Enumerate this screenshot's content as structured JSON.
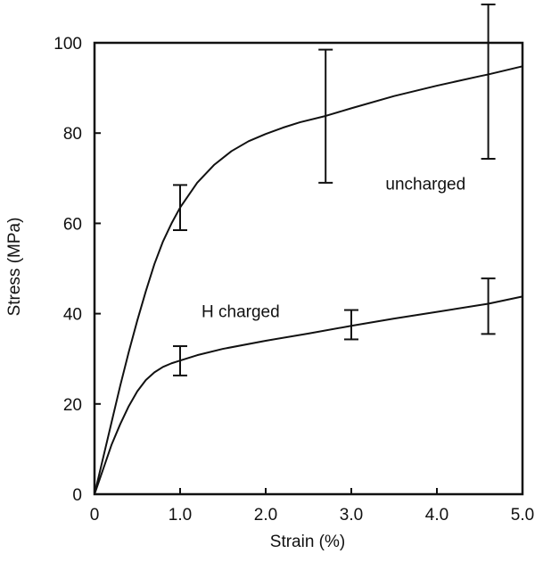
{
  "chart_data": {
    "type": "line",
    "title": "",
    "xlabel": "Strain (%)",
    "ylabel": "Stress (MPa)",
    "xlim": [
      0,
      5
    ],
    "ylim": [
      0,
      100
    ],
    "xticks": [
      0,
      1,
      2,
      3,
      4,
      5
    ],
    "xtick_labels": [
      "0",
      "1.0",
      "2.0",
      "3.0",
      "4.0",
      "5.0"
    ],
    "yticks": [
      0,
      20,
      40,
      60,
      80,
      100
    ],
    "ytick_labels": [
      "0",
      "20",
      "40",
      "60",
      "80",
      "100"
    ],
    "grid": false,
    "legend": "none",
    "series": [
      {
        "name": "uncharged",
        "label_position": [
          3.4,
          67.5
        ],
        "points": [
          [
            0,
            0
          ],
          [
            0.1,
            8
          ],
          [
            0.2,
            16
          ],
          [
            0.3,
            24
          ],
          [
            0.4,
            31.5
          ],
          [
            0.5,
            38.5
          ],
          [
            0.6,
            45
          ],
          [
            0.7,
            51
          ],
          [
            0.8,
            56
          ],
          [
            0.9,
            60
          ],
          [
            1.0,
            63.5
          ],
          [
            1.2,
            69
          ],
          [
            1.4,
            73
          ],
          [
            1.6,
            76
          ],
          [
            1.8,
            78.2
          ],
          [
            2.0,
            79.8
          ],
          [
            2.2,
            81.2
          ],
          [
            2.4,
            82.4
          ],
          [
            2.7,
            83.8
          ],
          [
            3.0,
            85.5
          ],
          [
            3.5,
            88.2
          ],
          [
            4.0,
            90.5
          ],
          [
            4.5,
            92.6
          ],
          [
            4.6,
            93
          ],
          [
            5.0,
            94.8
          ]
        ],
        "error_bars": [
          {
            "x": 1.0,
            "y": 63.5,
            "low": 58.5,
            "high": 68.5
          },
          {
            "x": 2.7,
            "y": 83.8,
            "low": 69,
            "high": 98.5
          },
          {
            "x": 4.6,
            "y": 93,
            "low": 74.3,
            "high": 108.5
          }
        ]
      },
      {
        "name": "H  charged",
        "label_position": [
          1.25,
          39.2
        ],
        "points": [
          [
            0,
            0
          ],
          [
            0.1,
            5.5
          ],
          [
            0.2,
            11
          ],
          [
            0.3,
            15.5
          ],
          [
            0.4,
            19.5
          ],
          [
            0.5,
            22.8
          ],
          [
            0.6,
            25.3
          ],
          [
            0.7,
            27
          ],
          [
            0.8,
            28.2
          ],
          [
            0.9,
            29
          ],
          [
            1.0,
            29.6
          ],
          [
            1.2,
            30.8
          ],
          [
            1.5,
            32.2
          ],
          [
            2.0,
            34
          ],
          [
            2.5,
            35.6
          ],
          [
            3.0,
            37.3
          ],
          [
            3.5,
            38.9
          ],
          [
            4.0,
            40.4
          ],
          [
            4.5,
            41.9
          ],
          [
            4.6,
            42.2
          ],
          [
            5.0,
            43.8
          ]
        ],
        "error_bars": [
          {
            "x": 1.0,
            "y": 29.6,
            "low": 26.3,
            "high": 32.8
          },
          {
            "x": 3.0,
            "y": 37.5,
            "low": 34.3,
            "high": 40.8
          },
          {
            "x": 4.6,
            "y": 42,
            "low": 35.5,
            "high": 47.8
          }
        ]
      }
    ]
  }
}
